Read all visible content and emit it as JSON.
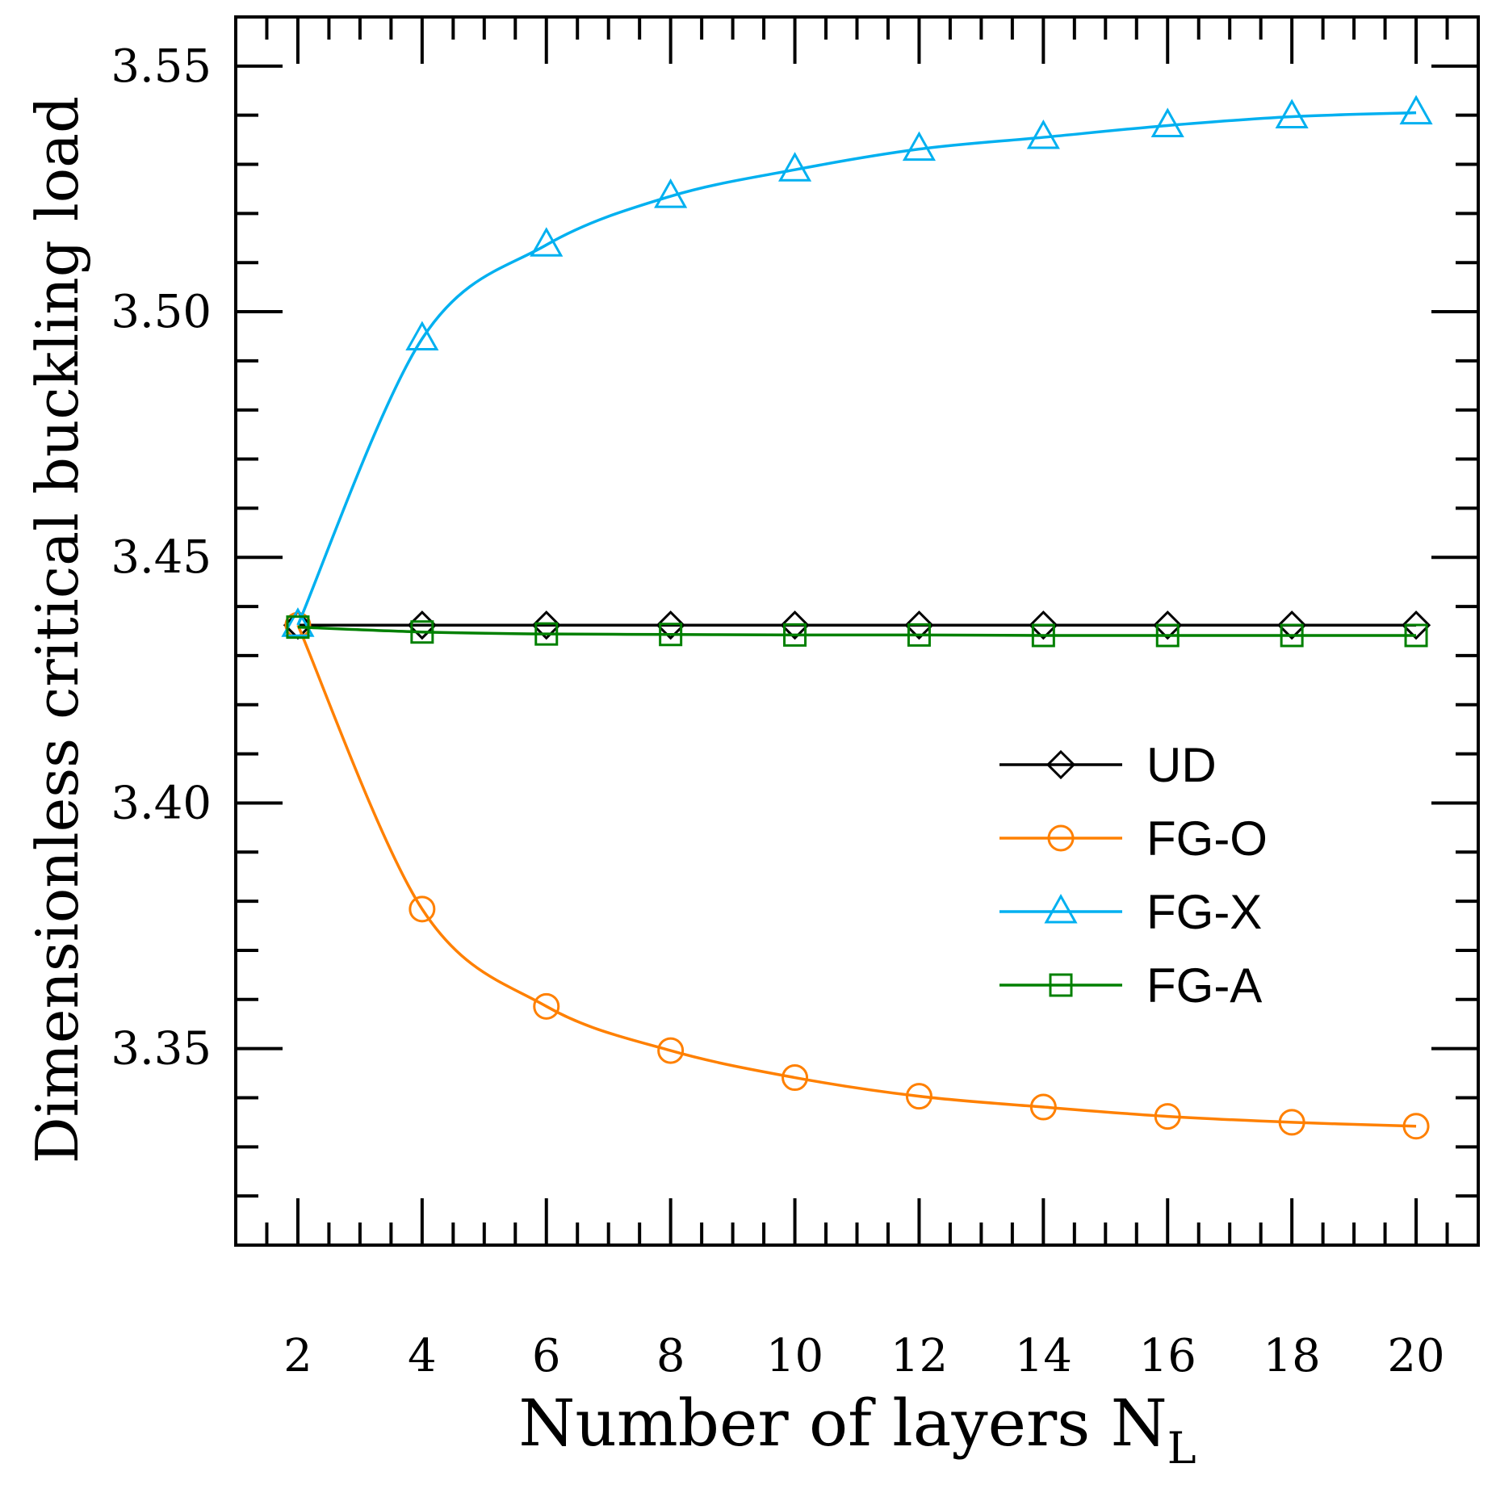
{
  "chart_data": {
    "type": "line",
    "title": "",
    "xlabel": "Number of layers N",
    "xlabel_subscript": "L",
    "ylabel": "Dimensionless critical buckling load",
    "xlim": [
      1,
      21
    ],
    "ylim": [
      3.31,
      3.56
    ],
    "x_ticks": [
      2,
      4,
      6,
      8,
      10,
      12,
      14,
      16,
      18,
      20
    ],
    "x_tick_labels": [
      "2",
      "4",
      "6",
      "8",
      "10",
      "12",
      "14",
      "16",
      "18",
      "20"
    ],
    "y_ticks": [
      3.35,
      3.4,
      3.45,
      3.5,
      3.55
    ],
    "y_tick_labels": [
      "3.35",
      "3.40",
      "3.45",
      "3.50",
      "3.55"
    ],
    "grid": false,
    "legend_position": "center-right",
    "x": [
      2,
      4,
      6,
      8,
      10,
      12,
      14,
      16,
      18,
      20
    ],
    "series": [
      {
        "name": "UD",
        "marker": "diamond",
        "color": "#000000",
        "values": [
          3.4362,
          3.4362,
          3.4362,
          3.4362,
          3.4362,
          3.4362,
          3.4362,
          3.4362,
          3.4362,
          3.4362
        ]
      },
      {
        "name": "FG-O",
        "marker": "circle",
        "color": "#ff8000",
        "values": [
          3.4362,
          3.3784,
          3.3586,
          3.3496,
          3.3441,
          3.3403,
          3.3381,
          3.3362,
          3.335,
          3.3342
        ]
      },
      {
        "name": "FG-X",
        "marker": "triangle",
        "color": "#00b0f0",
        "values": [
          3.4362,
          3.4945,
          3.5136,
          3.5235,
          3.5289,
          3.5331,
          3.5355,
          3.5379,
          3.5397,
          3.5405
        ]
      },
      {
        "name": "FG-A",
        "marker": "square",
        "color": "#008000",
        "values": [
          3.4358,
          3.4348,
          3.4344,
          3.4343,
          3.4342,
          3.4342,
          3.4341,
          3.4341,
          3.4341,
          3.4341
        ]
      }
    ]
  }
}
